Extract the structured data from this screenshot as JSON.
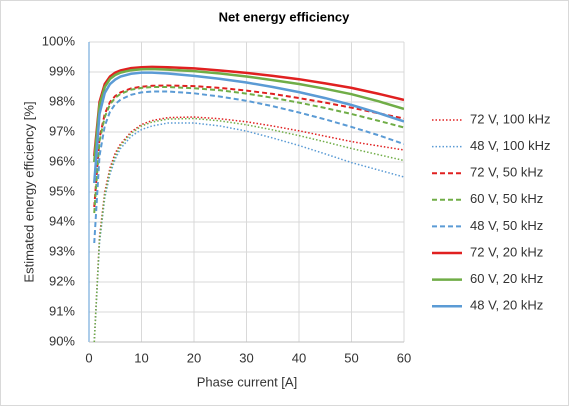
{
  "chart_data": {
    "type": "line",
    "title": "Net energy efficiency",
    "xlabel": "Phase current [A]",
    "ylabel": "Estimated energy efficiency [%]",
    "x": [
      1,
      2,
      3,
      4,
      5,
      6,
      8,
      10,
      12,
      15,
      20,
      25,
      30,
      35,
      40,
      45,
      50,
      55,
      60
    ],
    "xlim": [
      0,
      60
    ],
    "xticks": [
      0,
      10,
      20,
      30,
      40,
      50,
      60
    ],
    "ylim": [
      90,
      100
    ],
    "yticks": [
      {
        "value": 90,
        "label": "90%"
      },
      {
        "value": 91,
        "label": "91%"
      },
      {
        "value": 92,
        "label": "92%"
      },
      {
        "value": 93,
        "label": "93%"
      },
      {
        "value": 94,
        "label": "94%"
      },
      {
        "value": 95,
        "label": "95%"
      },
      {
        "value": 96,
        "label": "96%"
      },
      {
        "value": 97,
        "label": "97%"
      },
      {
        "value": 98,
        "label": "98%"
      },
      {
        "value": 99,
        "label": "99%"
      },
      {
        "value": 100,
        "label": "100%"
      }
    ],
    "grid": true,
    "legend": "right",
    "series": [
      {
        "name": "72 V, 100 kHz",
        "color": "#e02020",
        "dash": "dotted",
        "values": [
          90.0,
          93.5,
          95.0,
          95.8,
          96.3,
          96.6,
          97.0,
          97.25,
          97.38,
          97.48,
          97.5,
          97.44,
          97.34,
          97.2,
          97.04,
          96.86,
          96.68,
          96.54,
          96.4
        ]
      },
      {
        "name": "48 V, 100 kHz",
        "color": "#5b9bd5",
        "dash": "dotted",
        "values": [
          90.0,
          93.3,
          94.8,
          95.6,
          96.1,
          96.45,
          96.85,
          97.08,
          97.2,
          97.3,
          97.3,
          97.2,
          97.03,
          96.8,
          96.55,
          96.27,
          95.98,
          95.74,
          95.5
        ]
      },
      {
        "name": "72 V, 50 kHz",
        "color": "#e02020",
        "dash": "dashed",
        "values": [
          94.5,
          96.8,
          97.6,
          98.0,
          98.2,
          98.32,
          98.45,
          98.51,
          98.54,
          98.55,
          98.53,
          98.47,
          98.38,
          98.27,
          98.13,
          97.98,
          97.81,
          97.63,
          97.45
        ]
      },
      {
        "name": "60 V, 50 kHz",
        "color": "#70ad47",
        "dash": "dashed",
        "values": [
          94.3,
          96.7,
          97.5,
          97.92,
          98.14,
          98.27,
          98.41,
          98.47,
          98.5,
          98.5,
          98.46,
          98.39,
          98.28,
          98.14,
          97.98,
          97.8,
          97.6,
          97.38,
          97.15
        ]
      },
      {
        "name": "48 V, 50 kHz",
        "color": "#5b9bd5",
        "dash": "dashed",
        "values": [
          93.3,
          96.2,
          97.2,
          97.68,
          97.93,
          98.08,
          98.24,
          98.32,
          98.35,
          98.35,
          98.29,
          98.18,
          98.04,
          97.86,
          97.65,
          97.42,
          97.17,
          96.9,
          96.6
        ]
      },
      {
        "name": "72 V, 20 kHz",
        "color": "#e02020",
        "dash": "solid",
        "values": [
          96.2,
          98.0,
          98.6,
          98.85,
          98.98,
          99.05,
          99.13,
          99.16,
          99.17,
          99.16,
          99.12,
          99.05,
          98.97,
          98.87,
          98.76,
          98.62,
          98.47,
          98.28,
          98.07
        ]
      },
      {
        "name": "60 V, 20 kHz",
        "color": "#70ad47",
        "dash": "solid",
        "values": [
          96.0,
          97.9,
          98.5,
          98.77,
          98.9,
          98.98,
          99.06,
          99.09,
          99.1,
          99.08,
          99.03,
          98.95,
          98.85,
          98.73,
          98.6,
          98.44,
          98.26,
          98.03,
          97.77
        ]
      },
      {
        "name": "48 V, 20 kHz",
        "color": "#5b9bd5",
        "dash": "solid",
        "values": [
          95.3,
          97.6,
          98.3,
          98.6,
          98.75,
          98.85,
          98.94,
          98.98,
          98.98,
          98.95,
          98.87,
          98.77,
          98.65,
          98.5,
          98.33,
          98.13,
          97.9,
          97.64,
          97.35
        ]
      },
      {
        "color": "#70ad47",
        "dash": "dotted",
        "values": [
          90.0,
          93.4,
          94.9,
          95.7,
          96.2,
          96.55,
          96.95,
          97.2,
          97.33,
          97.43,
          97.45,
          97.37,
          97.24,
          97.07,
          96.88,
          96.67,
          96.45,
          96.25,
          96.05
        ]
      }
    ]
  }
}
